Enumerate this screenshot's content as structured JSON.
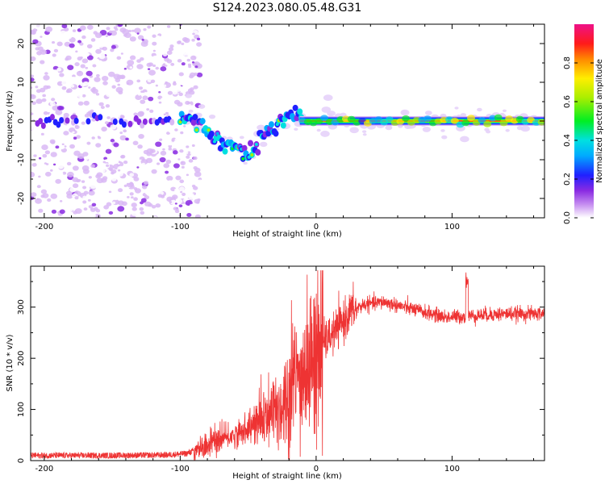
{
  "title": "S124.2023.080.05.48.G31",
  "chart_data": [
    {
      "type": "heatmap",
      "name": "spectrogram",
      "xlabel": "Height of straight line (km)",
      "ylabel": "Frequency (Hz)",
      "xlim": [
        -210,
        168
      ],
      "ylim": [
        -25,
        25
      ],
      "xticks": [
        -200,
        -100,
        0,
        100
      ],
      "yticks": [
        -20,
        -10,
        0,
        10,
        20
      ],
      "colorbar": {
        "label": "Normalized spectral amplitude",
        "range": [
          0,
          1
        ],
        "ticks": [
          0.0,
          0.2,
          0.4,
          0.6,
          0.8
        ]
      },
      "ridge": {
        "description_points_x": [
          -200,
          -180,
          -160,
          -140,
          -120,
          -100,
          -90,
          -80,
          -70,
          -60,
          -50,
          -45,
          -40,
          -30,
          -20,
          -15,
          -10,
          0,
          50,
          100,
          168
        ],
        "description_points_y": [
          0,
          0,
          0,
          0,
          0,
          0,
          1,
          -2,
          -5,
          -7,
          -8,
          -7,
          -4,
          -1,
          1,
          2,
          0,
          0,
          0,
          0,
          0
        ]
      }
    },
    {
      "type": "line",
      "name": "snr",
      "xlabel": "Height of straight line (km)",
      "ylabel": "SNR (10 * v/v)",
      "xlim": [
        -210,
        168
      ],
      "ylim": [
        0,
        380
      ],
      "xticks": [
        -200,
        -100,
        0,
        100
      ],
      "yticks": [
        0,
        100,
        200,
        300
      ],
      "color": "#ee3333",
      "trend_x": [
        -210,
        -150,
        -110,
        -95,
        -85,
        -70,
        -55,
        -45,
        -35,
        -25,
        -15,
        -5,
        0,
        5,
        15,
        25,
        35,
        50,
        65,
        80,
        95,
        110,
        125,
        140,
        168
      ],
      "trend_y": [
        10,
        10,
        11,
        14,
        25,
        40,
        55,
        70,
        85,
        110,
        150,
        180,
        210,
        230,
        255,
        290,
        305,
        310,
        300,
        290,
        280,
        282,
        285,
        287,
        287
      ]
    }
  ]
}
